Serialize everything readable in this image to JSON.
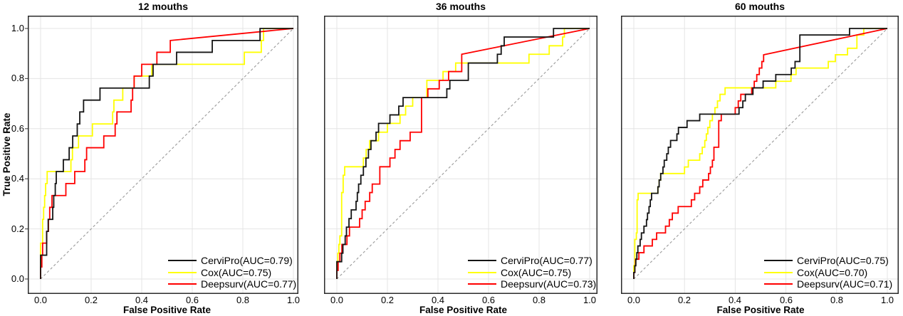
{
  "figure_title": "",
  "axes": {
    "x_label": "False Positive Rate",
    "y_label": "True Positive Rate",
    "x_ticks": [
      "0.0",
      "0.2",
      "0.4",
      "0.6",
      "0.8",
      "1.0"
    ],
    "y_ticks_desc": [
      "1.0",
      "0.8",
      "0.6",
      "0.4",
      "0.2",
      "0.0"
    ]
  },
  "style": {
    "grid_color": "#e4e4e4",
    "border_color": "#2b2b2b",
    "diagonal_color": "#9a9a9a",
    "background": "#ffffff"
  },
  "chart_data": [
    {
      "type": "line",
      "subtype": "roc-step-curves",
      "title": "12 mouths",
      "xlabel": "False Positive Rate",
      "ylabel": "True Positive Rate",
      "xlim": [
        0,
        1
      ],
      "ylim": [
        0,
        1
      ],
      "grid": true,
      "diagonal_reference": true,
      "legend_position": "bottom-right",
      "series": [
        {
          "name": "CerviPro",
          "auc": 0.79,
          "label": "CerviPro(AUC=0.79)",
          "color": "#141414",
          "steps": [
            [
              0,
              0.095
            ],
            [
              0.024,
              0.19
            ],
            [
              0.03,
              0.238
            ],
            [
              0.048,
              0.286
            ],
            [
              0.052,
              0.333
            ],
            [
              0.058,
              0.381
            ],
            [
              0.062,
              0.429
            ],
            [
              0.09,
              0.476
            ],
            [
              0.113,
              0.524
            ],
            [
              0.127,
              0.571
            ],
            [
              0.145,
              0.619
            ],
            [
              0.155,
              0.667
            ],
            [
              0.17,
              0.714
            ],
            [
              0.235,
              0.762
            ],
            [
              0.43,
              0.81
            ],
            [
              0.445,
              0.857
            ],
            [
              0.538,
              0.905
            ],
            [
              0.679,
              0.952
            ],
            [
              0.868,
              1.0
            ]
          ]
        },
        {
          "name": "Cox",
          "auc": 0.75,
          "label": "Cox(AUC=0.75)",
          "color": "#ffff00",
          "steps": [
            [
              0,
              0.143
            ],
            [
              0.008,
              0.238
            ],
            [
              0.012,
              0.286
            ],
            [
              0.016,
              0.333
            ],
            [
              0.02,
              0.381
            ],
            [
              0.026,
              0.429
            ],
            [
              0.12,
              0.476
            ],
            [
              0.126,
              0.524
            ],
            [
              0.15,
              0.571
            ],
            [
              0.205,
              0.619
            ],
            [
              0.285,
              0.667
            ],
            [
              0.29,
              0.714
            ],
            [
              0.325,
              0.762
            ],
            [
              0.37,
              0.81
            ],
            [
              0.44,
              0.857
            ],
            [
              0.806,
              0.905
            ],
            [
              0.873,
              0.952
            ],
            [
              0.882,
              1.0
            ]
          ]
        },
        {
          "name": "Deepsurv",
          "auc": 0.77,
          "label": "Deepsurv(AUC=0.77)",
          "color": "#ff0000",
          "steps": [
            [
              0,
              0.048
            ],
            [
              0.005,
              0.095
            ],
            [
              0.008,
              0.143
            ],
            [
              0.024,
              0.19
            ],
            [
              0.031,
              0.238
            ],
            [
              0.036,
              0.286
            ],
            [
              0.045,
              0.333
            ],
            [
              0.1,
              0.381
            ],
            [
              0.135,
              0.429
            ],
            [
              0.175,
              0.476
            ],
            [
              0.182,
              0.524
            ],
            [
              0.25,
              0.571
            ],
            [
              0.295,
              0.619
            ],
            [
              0.302,
              0.667
            ],
            [
              0.358,
              0.714
            ],
            [
              0.364,
              0.762
            ],
            [
              0.37,
              0.81
            ],
            [
              0.4,
              0.857
            ],
            [
              0.46,
              0.905
            ],
            [
              0.513,
              0.952
            ]
          ]
        }
      ]
    },
    {
      "type": "line",
      "subtype": "roc-step-curves",
      "title": "36 mouths",
      "xlabel": "False Positive Rate",
      "ylabel": "True Positive Rate",
      "xlim": [
        0,
        1
      ],
      "ylim": [
        0,
        1
      ],
      "grid": true,
      "diagonal_reference": true,
      "legend_position": "bottom-right",
      "series": [
        {
          "name": "CerviPro",
          "auc": 0.77,
          "label": "CerviPro(AUC=0.77)",
          "color": "#141414",
          "steps": [
            [
              0,
              0.069
            ],
            [
              0.019,
              0.103
            ],
            [
              0.024,
              0.138
            ],
            [
              0.033,
              0.172
            ],
            [
              0.038,
              0.207
            ],
            [
              0.048,
              0.241
            ],
            [
              0.057,
              0.276
            ],
            [
              0.076,
              0.31
            ],
            [
              0.081,
              0.345
            ],
            [
              0.086,
              0.379
            ],
            [
              0.095,
              0.414
            ],
            [
              0.105,
              0.448
            ],
            [
              0.115,
              0.483
            ],
            [
              0.125,
              0.517
            ],
            [
              0.135,
              0.552
            ],
            [
              0.155,
              0.586
            ],
            [
              0.165,
              0.621
            ],
            [
              0.21,
              0.655
            ],
            [
              0.245,
              0.69
            ],
            [
              0.262,
              0.724
            ],
            [
              0.435,
              0.759
            ],
            [
              0.447,
              0.793
            ],
            [
              0.52,
              0.862
            ],
            [
              0.635,
              0.897
            ],
            [
              0.65,
              0.931
            ],
            [
              0.662,
              0.966
            ],
            [
              0.857,
              1.0
            ]
          ]
        },
        {
          "name": "Cox",
          "auc": 0.75,
          "label": "Cox(AUC=0.75)",
          "color": "#ffff00",
          "steps": [
            [
              0,
              0.069
            ],
            [
              0.004,
              0.103
            ],
            [
              0.008,
              0.138
            ],
            [
              0.012,
              0.172
            ],
            [
              0.019,
              0.345
            ],
            [
              0.025,
              0.414
            ],
            [
              0.031,
              0.448
            ],
            [
              0.105,
              0.483
            ],
            [
              0.116,
              0.517
            ],
            [
              0.13,
              0.552
            ],
            [
              0.165,
              0.586
            ],
            [
              0.2,
              0.621
            ],
            [
              0.25,
              0.655
            ],
            [
              0.272,
              0.69
            ],
            [
              0.3,
              0.724
            ],
            [
              0.356,
              0.793
            ],
            [
              0.42,
              0.828
            ],
            [
              0.47,
              0.862
            ],
            [
              0.76,
              0.897
            ],
            [
              0.84,
              0.931
            ],
            [
              0.893,
              0.966
            ],
            [
              0.9,
              1.0
            ]
          ]
        },
        {
          "name": "Deepsurv",
          "auc": 0.73,
          "label": "Deepsurv(AUC=0.73)",
          "color": "#ff0000",
          "steps": [
            [
              0,
              0.034
            ],
            [
              0.005,
              0.069
            ],
            [
              0.012,
              0.103
            ],
            [
              0.02,
              0.138
            ],
            [
              0.04,
              0.172
            ],
            [
              0.05,
              0.207
            ],
            [
              0.09,
              0.241
            ],
            [
              0.1,
              0.276
            ],
            [
              0.112,
              0.31
            ],
            [
              0.13,
              0.345
            ],
            [
              0.14,
              0.379
            ],
            [
              0.17,
              0.448
            ],
            [
              0.21,
              0.483
            ],
            [
              0.23,
              0.517
            ],
            [
              0.25,
              0.552
            ],
            [
              0.29,
              0.586
            ],
            [
              0.335,
              0.724
            ],
            [
              0.36,
              0.759
            ],
            [
              0.405,
              0.793
            ],
            [
              0.442,
              0.828
            ],
            [
              0.494,
              0.897
            ]
          ]
        }
      ]
    },
    {
      "type": "line",
      "subtype": "roc-step-curves",
      "title": "60 mouths",
      "xlabel": "False Positive Rate",
      "ylabel": "True Positive Rate",
      "xlim": [
        0,
        1
      ],
      "ylim": [
        0,
        1
      ],
      "grid": true,
      "diagonal_reference": true,
      "legend_position": "bottom-right",
      "series": [
        {
          "name": "CerviPro",
          "auc": 0.75,
          "label": "CerviPro(AUC=0.75)",
          "color": "#141414",
          "steps": [
            [
              0,
              0.026
            ],
            [
              0.004,
              0.053
            ],
            [
              0.008,
              0.079
            ],
            [
              0.012,
              0.105
            ],
            [
              0.016,
              0.132
            ],
            [
              0.025,
              0.158
            ],
            [
              0.03,
              0.184
            ],
            [
              0.04,
              0.211
            ],
            [
              0.05,
              0.237
            ],
            [
              0.054,
              0.263
            ],
            [
              0.06,
              0.289
            ],
            [
              0.065,
              0.316
            ],
            [
              0.07,
              0.342
            ],
            [
              0.095,
              0.368
            ],
            [
              0.1,
              0.395
            ],
            [
              0.106,
              0.421
            ],
            [
              0.115,
              0.447
            ],
            [
              0.12,
              0.474
            ],
            [
              0.13,
              0.5
            ],
            [
              0.136,
              0.526
            ],
            [
              0.145,
              0.553
            ],
            [
              0.17,
              0.579
            ],
            [
              0.176,
              0.605
            ],
            [
              0.21,
              0.632
            ],
            [
              0.26,
              0.658
            ],
            [
              0.415,
              0.684
            ],
            [
              0.43,
              0.711
            ],
            [
              0.44,
              0.737
            ],
            [
              0.47,
              0.763
            ],
            [
              0.51,
              0.79
            ],
            [
              0.56,
              0.816
            ],
            [
              0.621,
              0.842
            ],
            [
              0.636,
              0.868
            ],
            [
              0.655,
              0.974
            ],
            [
              0.851,
              1.0
            ]
          ]
        },
        {
          "name": "Cox",
          "auc": 0.7,
          "label": "Cox(AUC=0.70)",
          "color": "#ffff00",
          "steps": [
            [
              0,
              0.053
            ],
            [
              0.004,
              0.158
            ],
            [
              0.01,
              0.184
            ],
            [
              0.013,
              0.316
            ],
            [
              0.017,
              0.342
            ],
            [
              0.095,
              0.368
            ],
            [
              0.1,
              0.395
            ],
            [
              0.106,
              0.421
            ],
            [
              0.2,
              0.447
            ],
            [
              0.215,
              0.474
            ],
            [
              0.26,
              0.5
            ],
            [
              0.27,
              0.526
            ],
            [
              0.28,
              0.553
            ],
            [
              0.286,
              0.579
            ],
            [
              0.292,
              0.605
            ],
            [
              0.3,
              0.632
            ],
            [
              0.31,
              0.658
            ],
            [
              0.32,
              0.684
            ],
            [
              0.33,
              0.711
            ],
            [
              0.34,
              0.737
            ],
            [
              0.36,
              0.763
            ],
            [
              0.56,
              0.789
            ],
            [
              0.62,
              0.816
            ],
            [
              0.64,
              0.842
            ],
            [
              0.767,
              0.868
            ],
            [
              0.795,
              0.895
            ],
            [
              0.843,
              0.921
            ],
            [
              0.88,
              0.974
            ],
            [
              0.907,
              1.0
            ]
          ]
        },
        {
          "name": "Deepsurv",
          "auc": 0.71,
          "label": "Deepsurv(AUC=0.71)",
          "color": "#ff0000",
          "steps": [
            [
              0,
              0.026
            ],
            [
              0.004,
              0.053
            ],
            [
              0.007,
              0.079
            ],
            [
              0.02,
              0.105
            ],
            [
              0.04,
              0.132
            ],
            [
              0.073,
              0.158
            ],
            [
              0.09,
              0.184
            ],
            [
              0.125,
              0.211
            ],
            [
              0.14,
              0.237
            ],
            [
              0.152,
              0.263
            ],
            [
              0.175,
              0.289
            ],
            [
              0.227,
              0.316
            ],
            [
              0.24,
              0.342
            ],
            [
              0.26,
              0.368
            ],
            [
              0.272,
              0.395
            ],
            [
              0.295,
              0.421
            ],
            [
              0.302,
              0.447
            ],
            [
              0.31,
              0.474
            ],
            [
              0.316,
              0.526
            ],
            [
              0.335,
              0.632
            ],
            [
              0.345,
              0.658
            ],
            [
              0.4,
              0.684
            ],
            [
              0.412,
              0.711
            ],
            [
              0.422,
              0.737
            ],
            [
              0.465,
              0.763
            ],
            [
              0.475,
              0.789
            ],
            [
              0.485,
              0.816
            ],
            [
              0.495,
              0.842
            ],
            [
              0.505,
              0.868
            ],
            [
              0.512,
              0.895
            ]
          ]
        }
      ]
    }
  ]
}
